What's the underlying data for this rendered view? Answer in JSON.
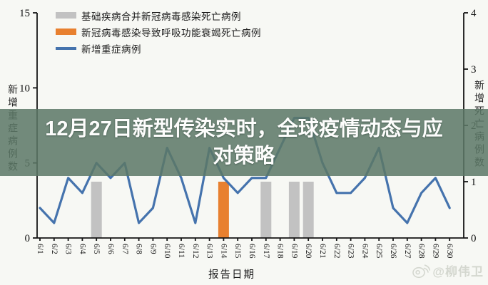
{
  "overlay": {
    "title_line1": "12月27日新型传染实时，全球疫情动态与应",
    "title_line2": "对策略"
  },
  "watermark": {
    "icon": "weibo-logo",
    "handle": "@柳伟卫"
  },
  "chart_data": {
    "type": "mixed",
    "title": "",
    "xlabel": "报告日期",
    "categories": [
      "6/1",
      "6/2",
      "6/3",
      "6/4",
      "6/5",
      "6/6",
      "6/7",
      "6/8",
      "6/9",
      "6/10",
      "6/11",
      "6/12",
      "6/13",
      "6/14",
      "6/15",
      "6/16",
      "6/17",
      "6/18",
      "6/19",
      "6/20",
      "6/21",
      "6/22",
      "6/23",
      "6/24",
      "6/25",
      "6/26",
      "6/27",
      "6/28",
      "6/29",
      "6/30"
    ],
    "left_axis": {
      "label": "新增重症病例数",
      "ticks": [
        0,
        5,
        10,
        15
      ],
      "min": 0,
      "max": 15
    },
    "right_axis": {
      "label": "新增死亡病例数",
      "ticks": [
        0,
        1,
        2,
        3,
        4
      ],
      "min": 0,
      "max": 4
    },
    "grid": false,
    "legend_position": "top-left",
    "series": [
      {
        "name": "基础疾病合并新冠病毒感染死亡病例",
        "type": "bar",
        "axis": "right",
        "color": "#c2c2c2",
        "values": [
          0,
          0,
          0,
          0,
          1,
          0,
          0,
          0,
          0,
          0,
          0,
          0,
          0,
          0,
          0,
          0,
          1,
          0,
          1,
          1,
          0,
          0,
          0,
          0,
          0,
          0,
          0,
          0,
          0,
          0
        ]
      },
      {
        "name": "新冠病毒感染导致呼吸功能衰竭死亡病例",
        "type": "bar",
        "axis": "right",
        "color": "#e8802f",
        "values": [
          0,
          0,
          0,
          0,
          0,
          0,
          0,
          0,
          0,
          0,
          0,
          0,
          0,
          1,
          0,
          0,
          0,
          0,
          0,
          0,
          0,
          0,
          0,
          0,
          0,
          0,
          0,
          0,
          0,
          0
        ]
      },
      {
        "name": "新增重症病例",
        "type": "line",
        "axis": "left",
        "color": "#4573ad",
        "values": [
          2,
          1,
          4,
          3,
          5,
          4,
          5,
          1,
          2,
          6,
          4,
          1,
          6,
          4,
          3,
          4,
          4,
          6,
          8,
          8,
          5,
          3,
          3,
          4,
          6,
          2,
          1,
          3,
          4,
          2
        ]
      }
    ]
  }
}
